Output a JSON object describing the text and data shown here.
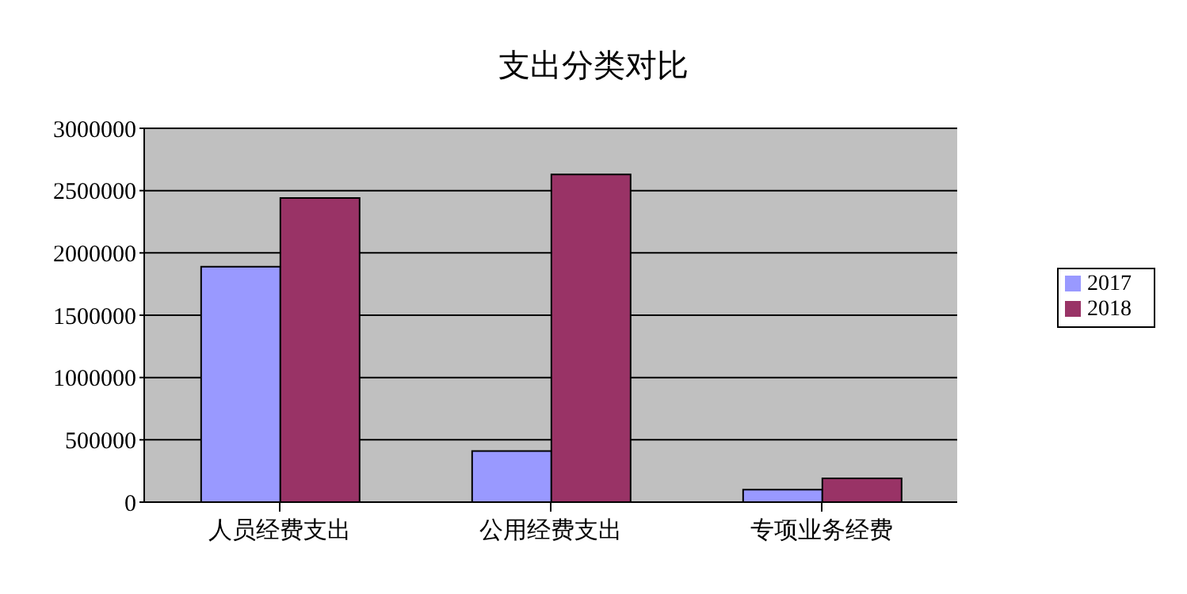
{
  "chart_data": {
    "type": "bar",
    "title": "支出分类对比",
    "categories": [
      "人员经费支出",
      "公用经费支出",
      "专项业务经费"
    ],
    "series": [
      {
        "name": "2017",
        "color": "#9999ff",
        "values": [
          1890000,
          410000,
          100000
        ]
      },
      {
        "name": "2018",
        "color": "#993366",
        "values": [
          2440000,
          2630000,
          190000
        ]
      }
    ],
    "ylim": [
      0,
      3000000
    ],
    "yticks": [
      0,
      500000,
      1000000,
      1500000,
      2000000,
      2500000,
      3000000
    ],
    "grid": "y",
    "legend": "right"
  }
}
